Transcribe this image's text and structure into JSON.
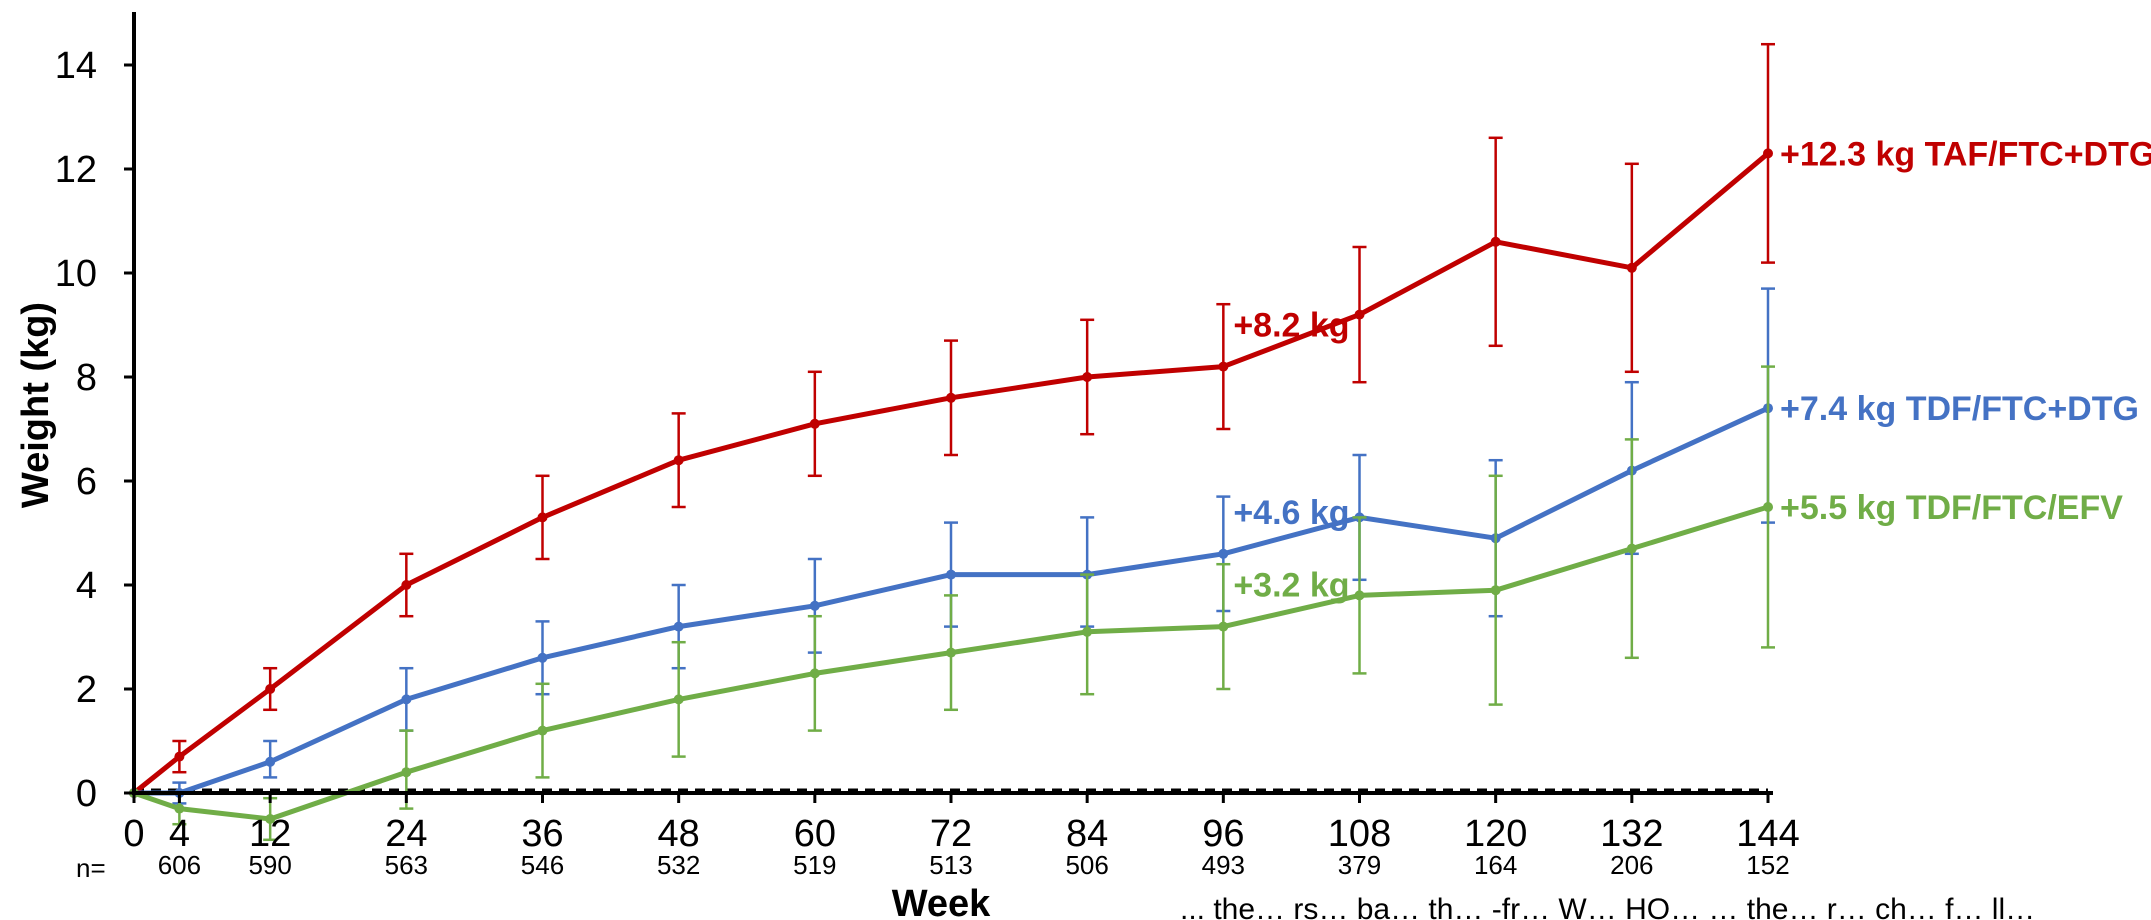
{
  "chart_data": {
    "type": "line",
    "xlabel": "Week",
    "ylabel": "Weight (kg)",
    "xlim": [
      0,
      144
    ],
    "ylim": [
      0,
      14
    ],
    "x_ticks": [
      0,
      4,
      12,
      24,
      36,
      48,
      60,
      72,
      84,
      96,
      108,
      120,
      132,
      144
    ],
    "y_ticks": [
      0,
      2,
      4,
      6,
      8,
      10,
      12,
      14
    ],
    "n_prefix": "n=",
    "n_values": [
      {
        "x": 4,
        "label": "606"
      },
      {
        "x": 12,
        "label": "590"
      },
      {
        "x": 24,
        "label": "563"
      },
      {
        "x": 36,
        "label": "546"
      },
      {
        "x": 48,
        "label": "532"
      },
      {
        "x": 60,
        "label": "519"
      },
      {
        "x": 72,
        "label": "513"
      },
      {
        "x": 84,
        "label": "506"
      },
      {
        "x": 96,
        "label": "493"
      },
      {
        "x": 108,
        "label": "379"
      },
      {
        "x": 120,
        "label": "164"
      },
      {
        "x": 132,
        "label": "206"
      },
      {
        "x": 144,
        "label": "152"
      }
    ],
    "baseline": "dashed",
    "series": [
      {
        "name": "TAF/FTC+DTG",
        "color": "#c00000",
        "x": [
          0,
          4,
          12,
          24,
          36,
          48,
          60,
          72,
          84,
          96,
          108,
          120,
          132,
          144
        ],
        "y": [
          0,
          0.7,
          2.0,
          4.0,
          5.3,
          6.4,
          7.1,
          7.6,
          8.0,
          8.2,
          9.2,
          10.6,
          10.1,
          12.3
        ],
        "err_low": [
          0,
          0.4,
          1.6,
          3.4,
          4.5,
          5.5,
          6.1,
          6.5,
          6.9,
          7.0,
          7.9,
          8.6,
          8.1,
          10.2
        ],
        "err_high": [
          0,
          1.0,
          2.4,
          4.6,
          6.1,
          7.3,
          8.1,
          8.7,
          9.1,
          9.4,
          10.5,
          12.6,
          12.1,
          14.4
        ],
        "end_label": "+12.3 kg TAF/FTC+DTG"
      },
      {
        "name": "TDF/FTC+DTG",
        "color": "#4472c4",
        "x": [
          0,
          4,
          12,
          24,
          36,
          48,
          60,
          72,
          84,
          96,
          108,
          120,
          132,
          144
        ],
        "y": [
          0,
          0,
          0.6,
          1.8,
          2.6,
          3.2,
          3.6,
          4.2,
          4.2,
          4.6,
          5.3,
          4.9,
          6.2,
          7.4
        ],
        "err_low": [
          0,
          -0.2,
          0.3,
          1.2,
          1.9,
          2.4,
          2.7,
          3.2,
          3.2,
          3.5,
          4.1,
          3.4,
          4.6,
          5.2
        ],
        "err_high": [
          0,
          0.2,
          1.0,
          2.4,
          3.3,
          4.0,
          4.5,
          5.2,
          5.3,
          5.7,
          6.5,
          6.4,
          7.9,
          9.7
        ],
        "end_label": "+7.4 kg TDF/FTC+DTG"
      },
      {
        "name": "TDF/FTC/EFV",
        "color": "#70ad47",
        "x": [
          0,
          4,
          12,
          24,
          36,
          48,
          60,
          72,
          84,
          96,
          108,
          120,
          132,
          144
        ],
        "y": [
          0,
          -0.3,
          -0.5,
          0.4,
          1.2,
          1.8,
          2.3,
          2.7,
          3.1,
          3.2,
          3.8,
          3.9,
          4.7,
          5.5
        ],
        "err_low": [
          0,
          -0.6,
          -0.9,
          -0.3,
          0.3,
          0.7,
          1.2,
          1.6,
          1.9,
          2.0,
          2.3,
          1.7,
          2.6,
          2.8
        ],
        "err_high": [
          0,
          0,
          -0.1,
          1.2,
          2.1,
          2.9,
          3.4,
          3.8,
          4.2,
          4.4,
          5.3,
          6.1,
          6.8,
          8.2
        ],
        "end_label": "+5.5 kg TDF/FTC/EFV"
      }
    ],
    "annotations": [
      {
        "text": "+8.2 kg",
        "x": 96,
        "y": 8.2,
        "series": 0
      },
      {
        "text": "+4.6 kg",
        "x": 96,
        "y": 4.6,
        "series": 1
      },
      {
        "text": "+3.2 kg",
        "x": 96,
        "y": 3.2,
        "series": 2
      }
    ],
    "footnote": "... the… rs… ba… th… -fr… W… HO… … the… r… ch… f… ll…"
  }
}
